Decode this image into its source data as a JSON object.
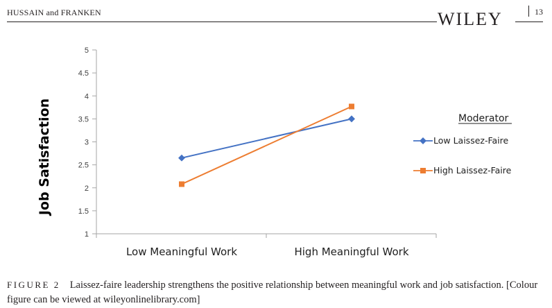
{
  "header": {
    "authors": "HUSSAIN and FRANKEN",
    "publisher": "WILEY",
    "page_number": "13"
  },
  "chart_data": {
    "type": "line",
    "categories": [
      "Low Meaningful Work",
      "High Meaningful Work"
    ],
    "ylabel": "Job Satisfaction",
    "ylim": [
      1,
      5
    ],
    "yticks": [
      "1",
      "1.5",
      "2",
      "2.5",
      "3",
      "3.5",
      "4",
      "4.5",
      "5"
    ],
    "grid": false,
    "legend_title": "Moderator",
    "legend_position": "right",
    "series": [
      {
        "name": "Low Laissez-Faire",
        "values": [
          2.65,
          3.5
        ],
        "color": "#4472c4",
        "marker": "diamond"
      },
      {
        "name": "High Laissez-Faire",
        "values": [
          2.08,
          3.77
        ],
        "color": "#ed7d31",
        "marker": "square"
      }
    ]
  },
  "caption": {
    "label": "FIGURE 2",
    "text": "Laissez-faire leadership strengthens the positive relationship between meaningful work and job satisfaction. [Colour figure can be viewed at wileyonlinelibrary.com]"
  }
}
